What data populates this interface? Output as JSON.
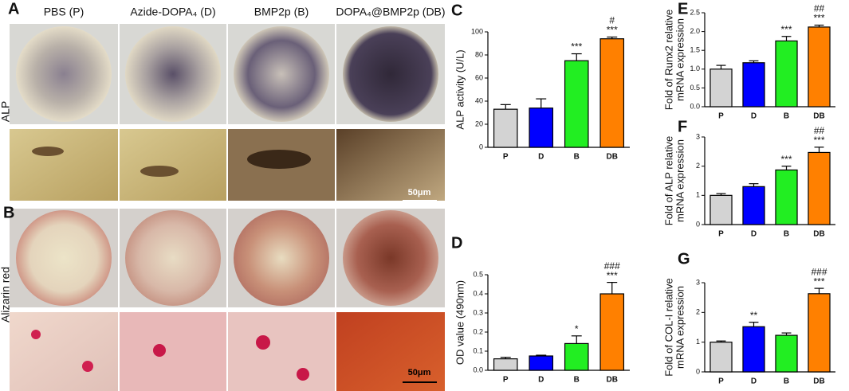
{
  "panels": {
    "labels": [
      "A",
      "B"
    ],
    "column_headers": [
      "PBS (P)",
      "Azide-DOPA₄ (D)",
      "BMP2p (B)",
      "DOPA₄@BMP2p (DB)"
    ],
    "row_labels": [
      "ALP",
      "Alizarin red"
    ],
    "scale_bars": [
      "50μm",
      "50μm"
    ]
  },
  "chart_data": [
    {
      "type": "bar",
      "panel_label": "C",
      "ylabel": [
        "ALP activity (U/L)"
      ],
      "categories": [
        "P",
        "D",
        "B",
        "DB"
      ],
      "values": [
        33,
        34,
        75,
        94
      ],
      "errors": [
        4,
        8,
        6,
        1.5
      ],
      "colors": [
        "#d3d3d3",
        "#0000ff",
        "#22ee22",
        "#ff8000"
      ],
      "significance": [
        null,
        null,
        "***",
        "***"
      ],
      "significance_2": [
        null,
        null,
        null,
        "#"
      ],
      "ylim": [
        0,
        100
      ],
      "yticks": [
        0,
        20,
        40,
        60,
        80,
        100
      ]
    },
    {
      "type": "bar",
      "panel_label": "D",
      "ylabel": [
        "OD value (490nm)"
      ],
      "categories": [
        "P",
        "D",
        "B",
        "DB"
      ],
      "values": [
        0.06,
        0.075,
        0.14,
        0.4
      ],
      "errors": [
        0.008,
        0.004,
        0.04,
        0.06
      ],
      "colors": [
        "#d3d3d3",
        "#0000ff",
        "#22ee22",
        "#ff8000"
      ],
      "significance": [
        null,
        null,
        "*",
        "***"
      ],
      "significance_2": [
        null,
        null,
        null,
        "###"
      ],
      "ylim": [
        0,
        0.5
      ],
      "yticks": [
        {
          "value": 0,
          "label": "0.0"
        },
        0.1,
        0.2,
        0.3,
        0.4,
        0.5
      ]
    },
    {
      "type": "bar",
      "panel_label": "E",
      "ylabel": [
        "Fold of Runx2 relative",
        "mRNA expression"
      ],
      "categories": [
        "P",
        "D",
        "B",
        "DB"
      ],
      "values": [
        1.0,
        1.17,
        1.75,
        2.12
      ],
      "errors": [
        0.1,
        0.05,
        0.12,
        0.05
      ],
      "colors": [
        "#d3d3d3",
        "#0000ff",
        "#22ee22",
        "#ff8000"
      ],
      "significance": [
        null,
        null,
        "***",
        "***"
      ],
      "significance_2": [
        null,
        null,
        null,
        "##"
      ],
      "ylim": [
        0,
        2.5
      ],
      "yticks": [
        {
          "value": 0,
          "label": "0.0"
        },
        0.5,
        {
          "value": 1,
          "label": "1.0"
        },
        1.5,
        {
          "value": 2,
          "label": "2.0"
        },
        2.5
      ]
    },
    {
      "type": "bar",
      "panel_label": "F",
      "ylabel": [
        "Fold of ALP relative",
        "mRNA expression"
      ],
      "categories": [
        "P",
        "D",
        "B",
        "DB"
      ],
      "values": [
        1.0,
        1.3,
        1.87,
        2.47
      ],
      "errors": [
        0.06,
        0.1,
        0.13,
        0.18
      ],
      "colors": [
        "#d3d3d3",
        "#0000ff",
        "#22ee22",
        "#ff8000"
      ],
      "significance": [
        null,
        null,
        "***",
        "***"
      ],
      "significance_2": [
        null,
        null,
        null,
        "##"
      ],
      "ylim": [
        0,
        3
      ],
      "yticks": [
        0,
        1,
        2,
        3
      ]
    },
    {
      "type": "bar",
      "panel_label": "G",
      "ylabel": [
        "Fold of COL-I relative",
        "mRNA expression"
      ],
      "categories": [
        "P",
        "D",
        "B",
        "DB"
      ],
      "values": [
        1.0,
        1.52,
        1.23,
        2.63
      ],
      "errors": [
        0.04,
        0.15,
        0.08,
        0.18
      ],
      "colors": [
        "#d3d3d3",
        "#0000ff",
        "#22ee22",
        "#ff8000"
      ],
      "significance": [
        null,
        "**",
        null,
        "***"
      ],
      "significance_2": [
        null,
        null,
        null,
        "###"
      ],
      "ylim": [
        0,
        3
      ],
      "yticks": [
        0,
        1,
        2,
        3
      ]
    }
  ]
}
